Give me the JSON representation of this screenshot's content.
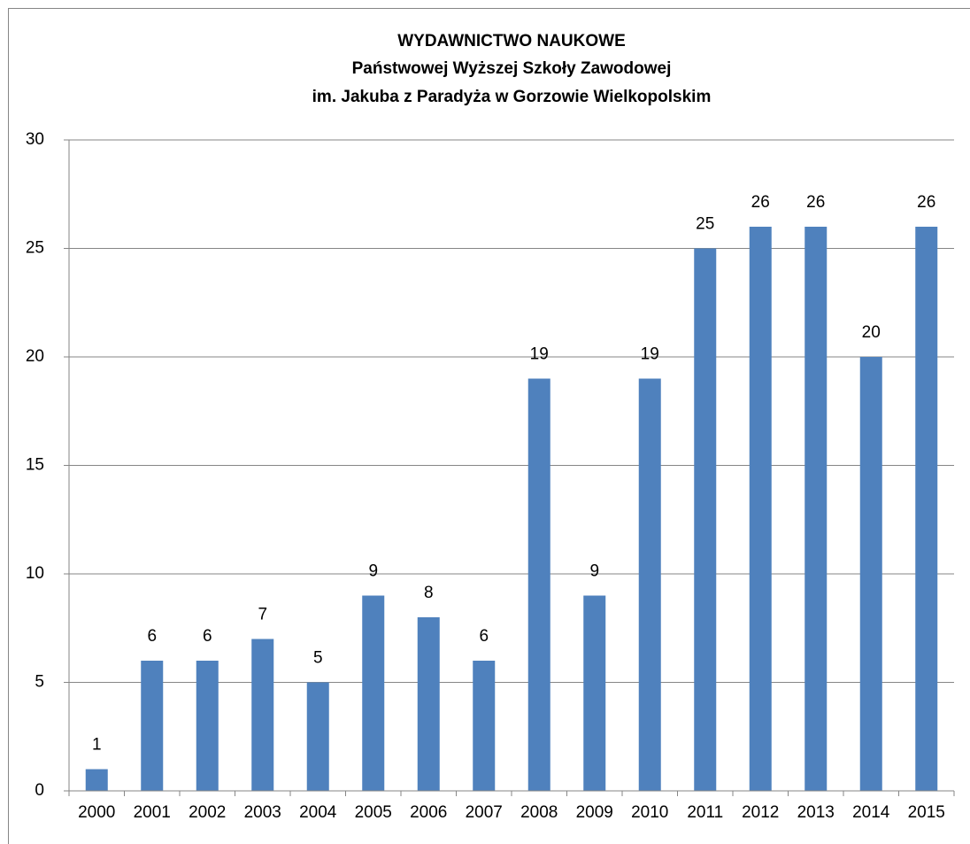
{
  "chart_data": {
    "type": "bar",
    "title": [
      "WYDAWNICTWO NAUKOWE",
      "Państwowej Wyższej Szkoły Zawodowej",
      "im. Jakuba z Paradyża w Gorzowie Wielkopolskim"
    ],
    "categories": [
      "2000",
      "2001",
      "2002",
      "2003",
      "2004",
      "2005",
      "2006",
      "2007",
      "2008",
      "2009",
      "2010",
      "2011",
      "2012",
      "2013",
      "2014",
      "2015"
    ],
    "values": [
      1,
      6,
      6,
      7,
      5,
      9,
      8,
      6,
      19,
      9,
      19,
      25,
      26,
      26,
      20,
      26
    ],
    "color": "#4f81bd",
    "ylim": [
      0,
      30
    ],
    "yticks": [
      0,
      5,
      10,
      15,
      20,
      25,
      30
    ],
    "grid": true,
    "data_labels": true
  }
}
